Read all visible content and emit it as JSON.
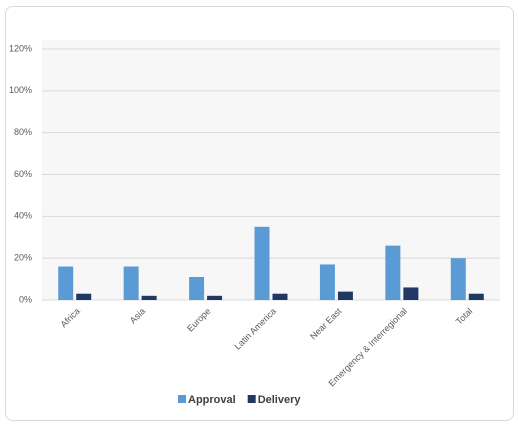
{
  "chart_data": {
    "type": "bar",
    "categories": [
      "Africa",
      "Asia",
      "Europe",
      "Latin America",
      "Near East",
      "Emergency & Interregional",
      "Total"
    ],
    "series": [
      {
        "name": "Approval",
        "color": "#5b9bd5",
        "values": [
          16,
          16,
          11,
          35,
          17,
          26,
          20
        ]
      },
      {
        "name": "Delivery",
        "color": "#203864",
        "values": [
          3,
          2,
          2,
          3,
          4,
          6,
          3
        ]
      }
    ],
    "ylim": [
      0,
      120
    ],
    "yticks": [
      {
        "value": 0,
        "label": "0%"
      },
      {
        "value": 20,
        "label": "20%"
      },
      {
        "value": 40,
        "label": "40%"
      },
      {
        "value": 60,
        "label": "60%"
      },
      {
        "value": 80,
        "label": "80%"
      },
      {
        "value": 100,
        "label": "100%"
      },
      {
        "value": 120,
        "label": "120%"
      }
    ],
    "grid": true
  }
}
